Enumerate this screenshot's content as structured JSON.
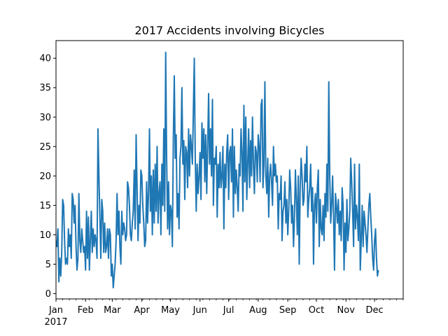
{
  "chart_data": {
    "type": "line",
    "title": "2017 Accidents involving Bicycles",
    "xlabel": "",
    "ylabel": "",
    "x_start": "2017-01-01",
    "x_end": "2017-12-31",
    "xlim": [
      "2017-01-01",
      "2017-12-31"
    ],
    "ylim": [
      -0.9,
      43
    ],
    "yticks": [
      0,
      5,
      10,
      15,
      20,
      25,
      30,
      35,
      40
    ],
    "xticks": [
      {
        "date": "2017-01-01",
        "label": "Jan",
        "sublabel": "2017"
      },
      {
        "date": "2017-02-01",
        "label": "Feb"
      },
      {
        "date": "2017-03-01",
        "label": "Mar"
      },
      {
        "date": "2017-04-01",
        "label": "Apr"
      },
      {
        "date": "2017-05-01",
        "label": "May"
      },
      {
        "date": "2017-06-01",
        "label": "Jun"
      },
      {
        "date": "2017-07-01",
        "label": "Jul"
      },
      {
        "date": "2017-08-01",
        "label": "Aug"
      },
      {
        "date": "2017-09-01",
        "label": "Sep"
      },
      {
        "date": "2017-10-01",
        "label": "Oct"
      },
      {
        "date": "2017-11-01",
        "label": "Nov"
      },
      {
        "date": "2017-12-01",
        "label": "Dec"
      }
    ],
    "grid": false,
    "legend": "none",
    "color": "#1f77b4",
    "series": [
      {
        "values": [
          9,
          8,
          11,
          2,
          6,
          3,
          7,
          16,
          15,
          9,
          5,
          6,
          5,
          11,
          8,
          10,
          6,
          17,
          16,
          12,
          15,
          8,
          4,
          6,
          17,
          9,
          7,
          11,
          9,
          7,
          8,
          4,
          14,
          6,
          13,
          4,
          9,
          14,
          7,
          11,
          8,
          10,
          9,
          6,
          28,
          20,
          13,
          6,
          16,
          14,
          7,
          12,
          7,
          8,
          11,
          6,
          11,
          10,
          3,
          5,
          1,
          3,
          5,
          9,
          17,
          10,
          14,
          8,
          5,
          14,
          10,
          12,
          11,
          9,
          10,
          19,
          18,
          15,
          10,
          9,
          12,
          14,
          21,
          11,
          27,
          18,
          9,
          15,
          12,
          21,
          20,
          15,
          12,
          8,
          9,
          19,
          12,
          17,
          28,
          14,
          20,
          10,
          21,
          12,
          22,
          14,
          25,
          12,
          17,
          19,
          10,
          22,
          15,
          28,
          14,
          41,
          23,
          11,
          19,
          10,
          15,
          14,
          8,
          26,
          37,
          23,
          27,
          13,
          17,
          11,
          23,
          25,
          35,
          22,
          26,
          16,
          25,
          24,
          18,
          28,
          20,
          27,
          25,
          22,
          31,
          40,
          23,
          14,
          22,
          17,
          20,
          24,
          16,
          29,
          23,
          28,
          19,
          27,
          17,
          25,
          34,
          22,
          28,
          20,
          33,
          15,
          23,
          22,
          25,
          13,
          22,
          18,
          24,
          18,
          20,
          25,
          11,
          22,
          18,
          24,
          27,
          16,
          24,
          25,
          19,
          28,
          13,
          25,
          17,
          21,
          18,
          14,
          22,
          20,
          28,
          24,
          14,
          32,
          19,
          30,
          16,
          22,
          28,
          18,
          26,
          20,
          30,
          22,
          17,
          25,
          24,
          19,
          27,
          25,
          19,
          32,
          33,
          18,
          22,
          36,
          20,
          17,
          23,
          13,
          20,
          22,
          19,
          15,
          25,
          20,
          22,
          19,
          20,
          11,
          17,
          16,
          20,
          9,
          14,
          15,
          19,
          12,
          16,
          10,
          14,
          21,
          18,
          12,
          15,
          8,
          13,
          21,
          16,
          10,
          20,
          5,
          18,
          23,
          20,
          15,
          16,
          22,
          19,
          25,
          13,
          16,
          18,
          22,
          14,
          18,
          5,
          15,
          17,
          12,
          18,
          21,
          8,
          16,
          11,
          10,
          15,
          9,
          17,
          13,
          22,
          14,
          36,
          20,
          12,
          15,
          20,
          13,
          4,
          17,
          15,
          12,
          16,
          10,
          14,
          9,
          18,
          15,
          4,
          12,
          7,
          16,
          9,
          11,
          14,
          23,
          19,
          14,
          8,
          22,
          11,
          15,
          13,
          9,
          22,
          4,
          9,
          15,
          8,
          14,
          12,
          10,
          7,
          11,
          15,
          17,
          13,
          10,
          6,
          4,
          9,
          11,
          6,
          3,
          4
        ]
      }
    ]
  }
}
